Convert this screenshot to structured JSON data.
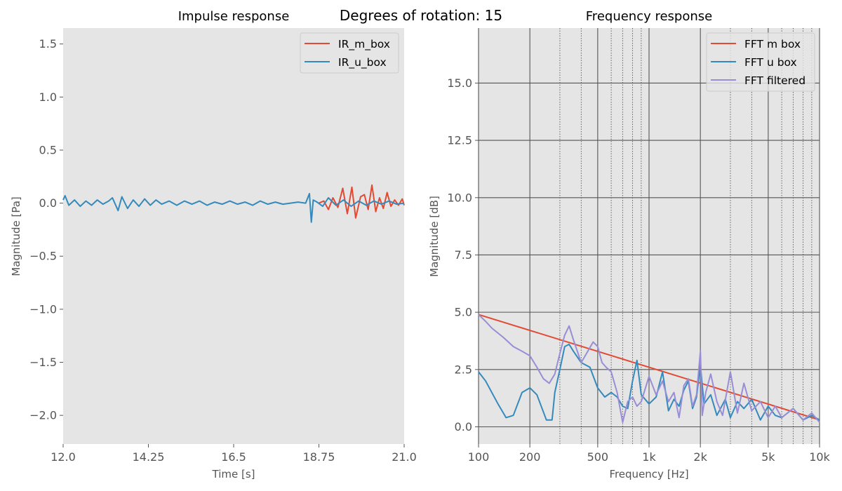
{
  "figure": {
    "suptitle": "Degrees of rotation: 15"
  },
  "chart_data": [
    {
      "type": "line",
      "title": "Impulse response",
      "xlabel": "Time [s]",
      "ylabel": "Magnitude [Pa]",
      "xlim": [
        12.0,
        21.0
      ],
      "ylim": [
        -2.27,
        1.65
      ],
      "xticks": [
        12.0,
        14.25,
        16.5,
        18.75,
        21.0
      ],
      "xtick_labels": [
        "12.0",
        "14.25",
        "16.5",
        "18.75",
        "21.0"
      ],
      "yticks": [
        -2.0,
        -1.5,
        -1.0,
        -0.5,
        0.0,
        0.5,
        1.0,
        1.5
      ],
      "ytick_labels": [
        "−2.0",
        "−1.5",
        "−1.0",
        "−0.5",
        "0.0",
        "0.5",
        "1.0",
        "1.5"
      ],
      "grid": false,
      "legend": "top-right",
      "series": [
        {
          "name": "IR_m_box",
          "color": "#E24A33",
          "x": [
            18.75,
            18.88,
            19.0,
            19.12,
            19.25,
            19.38,
            19.5,
            19.62,
            19.72,
            19.85,
            19.95,
            20.05,
            20.15,
            20.25,
            20.35,
            20.45,
            20.55,
            20.65,
            20.75,
            20.85,
            20.95,
            21.0
          ],
          "y": [
            0.0,
            0.02,
            -0.06,
            0.05,
            -0.04,
            0.14,
            -0.1,
            0.15,
            -0.14,
            0.06,
            0.08,
            -0.06,
            0.17,
            -0.08,
            0.05,
            -0.05,
            0.1,
            -0.03,
            0.03,
            -0.02,
            0.04,
            -0.02
          ]
        },
        {
          "name": "IR_u_box",
          "color": "#348ABD",
          "x": [
            12.0,
            12.05,
            12.15,
            12.3,
            12.45,
            12.6,
            12.75,
            12.9,
            13.05,
            13.2,
            13.3,
            13.45,
            13.55,
            13.7,
            13.85,
            14.0,
            14.15,
            14.3,
            14.45,
            14.6,
            14.8,
            15.0,
            15.2,
            15.4,
            15.6,
            15.8,
            16.0,
            16.2,
            16.4,
            16.6,
            16.8,
            17.0,
            17.2,
            17.4,
            17.6,
            17.8,
            18.0,
            18.2,
            18.4,
            18.5,
            18.55,
            18.6,
            18.7,
            18.85,
            19.0,
            19.2,
            19.4,
            19.6,
            19.8,
            20.0,
            20.2,
            20.4,
            20.6,
            20.8,
            21.0
          ],
          "y": [
            0.03,
            0.07,
            -0.02,
            0.03,
            -0.03,
            0.02,
            -0.02,
            0.03,
            -0.01,
            0.02,
            0.05,
            -0.07,
            0.06,
            -0.05,
            0.03,
            -0.03,
            0.04,
            -0.02,
            0.03,
            -0.01,
            0.02,
            -0.02,
            0.02,
            -0.01,
            0.02,
            -0.02,
            0.01,
            -0.01,
            0.02,
            -0.01,
            0.01,
            -0.02,
            0.02,
            -0.01,
            0.01,
            -0.01,
            0.0,
            0.01,
            0.0,
            0.09,
            -0.18,
            0.03,
            0.01,
            -0.03,
            0.05,
            -0.02,
            0.03,
            -0.03,
            0.02,
            -0.02,
            0.02,
            -0.01,
            0.02,
            -0.01,
            0.0
          ]
        }
      ]
    },
    {
      "type": "line",
      "title": "Frequency response",
      "xlabel": "Frequency [Hz]",
      "ylabel": "Magnitude [dB]",
      "xscale": "log",
      "xlim": [
        100,
        10000
      ],
      "ylim": [
        -0.75,
        17.4
      ],
      "xticks": [
        100,
        200,
        500,
        1000,
        2000,
        5000,
        10000
      ],
      "xtick_labels": [
        "100",
        "200",
        "500",
        "1k",
        "2k",
        "5k",
        "10k"
      ],
      "yticks": [
        0.0,
        2.5,
        5.0,
        7.5,
        10.0,
        12.5,
        15.0
      ],
      "ytick_labels": [
        "0.0",
        "2.5",
        "5.0",
        "7.5",
        "10.0",
        "12.5",
        "15.0"
      ],
      "grid": true,
      "legend": "top-right",
      "series": [
        {
          "name": "FFT m box",
          "color": "#E24A33",
          "x": [
            100,
            10000
          ],
          "y": [
            4.9,
            0.3
          ]
        },
        {
          "name": "FFT u box",
          "color": "#348ABD",
          "x": [
            100,
            110,
            130,
            145,
            160,
            180,
            200,
            220,
            250,
            270,
            280,
            300,
            320,
            340,
            360,
            400,
            450,
            500,
            550,
            600,
            650,
            700,
            750,
            800,
            850,
            900,
            1000,
            1100,
            1200,
            1300,
            1400,
            1500,
            1600,
            1700,
            1800,
            1900,
            2000,
            2100,
            2300,
            2500,
            2800,
            3000,
            3300,
            3600,
            4000,
            4500,
            5000,
            5500,
            6000,
            7000,
            8000,
            9000,
            10000
          ],
          "y": [
            2.4,
            2.0,
            1.0,
            0.4,
            0.5,
            1.5,
            1.7,
            1.4,
            0.3,
            0.3,
            1.5,
            2.5,
            3.5,
            3.6,
            3.3,
            2.8,
            2.6,
            1.7,
            1.3,
            1.5,
            1.3,
            0.9,
            0.8,
            2.0,
            2.9,
            1.4,
            1.0,
            1.3,
            2.4,
            0.7,
            1.2,
            0.9,
            1.6,
            2.0,
            0.8,
            1.3,
            2.7,
            1.0,
            1.4,
            0.5,
            1.2,
            0.4,
            1.1,
            0.8,
            1.2,
            0.3,
            0.9,
            0.5,
            0.4,
            0.8,
            0.3,
            0.5,
            0.3
          ]
        },
        {
          "name": "FFT filtered",
          "color": "#988ED5",
          "x": [
            100,
            110,
            120,
            140,
            160,
            180,
            200,
            220,
            240,
            260,
            280,
            300,
            320,
            340,
            360,
            400,
            430,
            470,
            500,
            530,
            560,
            600,
            650,
            700,
            750,
            800,
            850,
            900,
            1000,
            1100,
            1200,
            1300,
            1400,
            1500,
            1600,
            1700,
            1800,
            1900,
            2000,
            2050,
            2150,
            2300,
            2500,
            2700,
            3000,
            3300,
            3600,
            4000,
            4500,
            5000,
            5500,
            6000,
            7000,
            8000,
            9000,
            10000
          ],
          "y": [
            4.9,
            4.6,
            4.3,
            3.9,
            3.5,
            3.3,
            3.1,
            2.6,
            2.1,
            1.9,
            2.3,
            3.2,
            4.0,
            4.4,
            3.8,
            2.8,
            3.2,
            3.7,
            3.5,
            2.8,
            2.6,
            2.4,
            1.5,
            0.2,
            1.1,
            1.3,
            0.9,
            1.1,
            2.2,
            1.4,
            2.0,
            1.1,
            1.5,
            0.4,
            1.8,
            2.1,
            0.9,
            1.4,
            3.3,
            0.5,
            1.5,
            2.3,
            1.1,
            0.5,
            2.4,
            0.6,
            1.9,
            0.7,
            1.1,
            0.4,
            0.9,
            0.4,
            0.8,
            0.3,
            0.6,
            0.2
          ]
        }
      ]
    }
  ]
}
